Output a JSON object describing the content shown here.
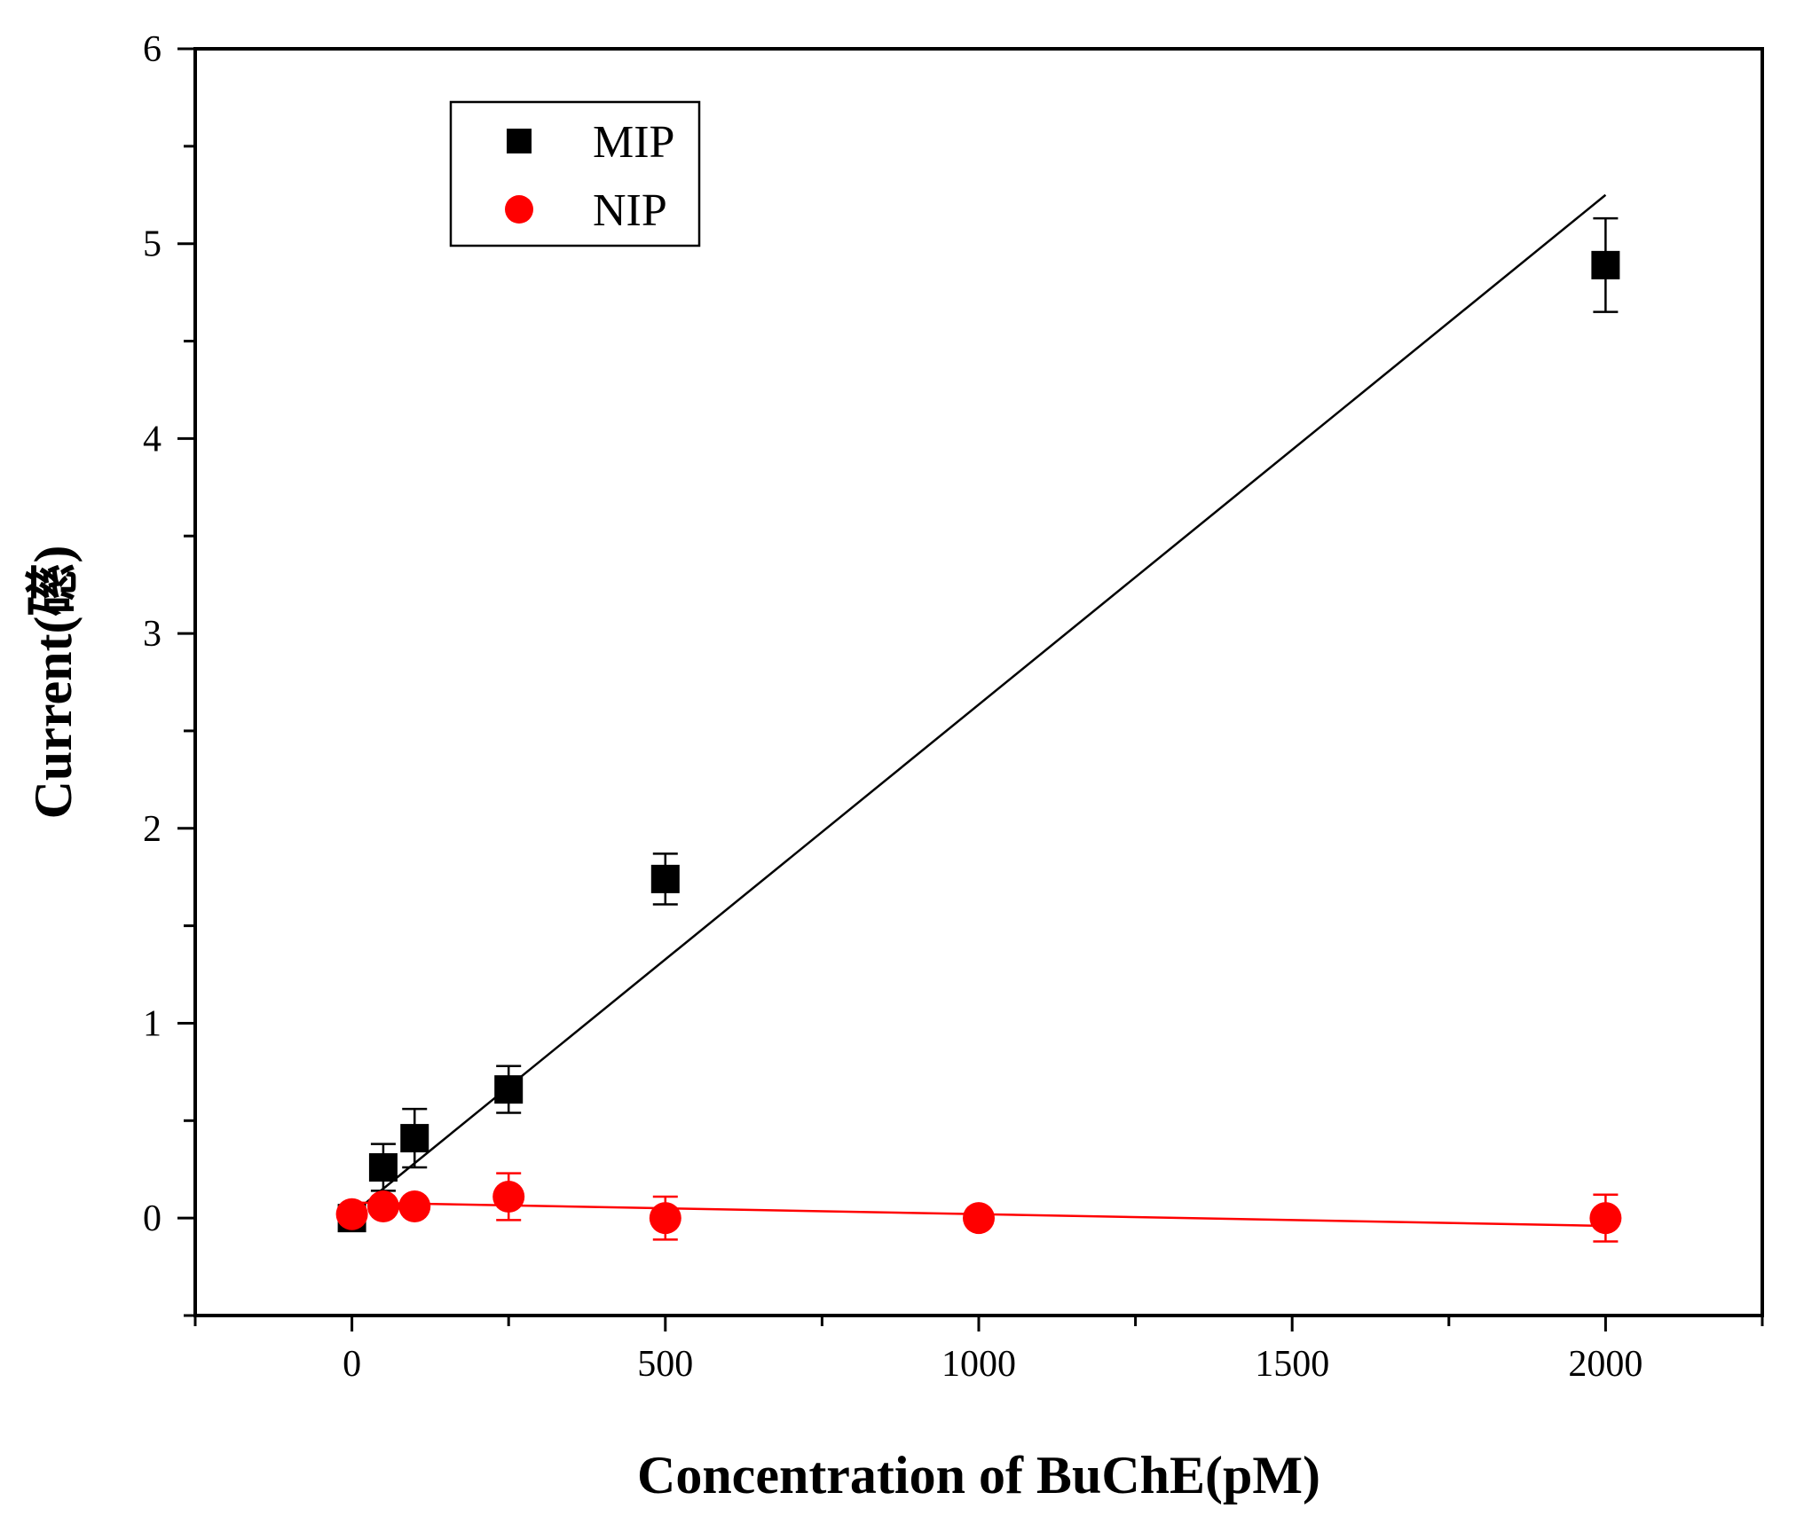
{
  "chart_data": {
    "type": "scatter",
    "title": "",
    "xlabel": "Concentration of BuChE(pM)",
    "ylabel": "Current(礠)",
    "xlim": [
      -250,
      2250
    ],
    "ylim": [
      -0.5,
      6
    ],
    "x_ticks": [
      0,
      500,
      1000,
      1500,
      2000
    ],
    "x_tick_labels": [
      "0",
      "500",
      "1000",
      "1500",
      "2000"
    ],
    "y_ticks": [
      0,
      1,
      2,
      3,
      4,
      5,
      6
    ],
    "y_tick_labels": [
      "0",
      "1",
      "2",
      "3",
      "4",
      "5",
      "6"
    ],
    "grid": false,
    "legend_position": "top-left",
    "series": [
      {
        "name": "MIP",
        "marker": "square",
        "color": "#000000",
        "points": [
          {
            "x": 0,
            "y": 0.0,
            "err": 0.03
          },
          {
            "x": 50,
            "y": 0.26,
            "err": 0.12
          },
          {
            "x": 100,
            "y": 0.41,
            "err": 0.15
          },
          {
            "x": 250,
            "y": 0.66,
            "err": 0.12
          },
          {
            "x": 500,
            "y": 1.74,
            "err": 0.13
          },
          {
            "x": 2000,
            "y": 4.89,
            "err": 0.24
          }
        ],
        "fit": {
          "x": [
            0,
            2000
          ],
          "y": [
            0.02,
            5.25
          ]
        }
      },
      {
        "name": "NIP",
        "marker": "circle",
        "color": "#ff0000",
        "points": [
          {
            "x": 0,
            "y": 0.02,
            "err": 0.02
          },
          {
            "x": 50,
            "y": 0.06,
            "err": 0.03
          },
          {
            "x": 100,
            "y": 0.06,
            "err": 0.03
          },
          {
            "x": 250,
            "y": 0.11,
            "err": 0.12
          },
          {
            "x": 500,
            "y": 0.0,
            "err": 0.11
          },
          {
            "x": 1000,
            "y": 0.0,
            "err": 0.03
          },
          {
            "x": 2000,
            "y": 0.0,
            "err": 0.12
          }
        ],
        "fit": {
          "x": [
            0,
            2000
          ],
          "y": [
            0.08,
            -0.04
          ]
        }
      }
    ]
  }
}
